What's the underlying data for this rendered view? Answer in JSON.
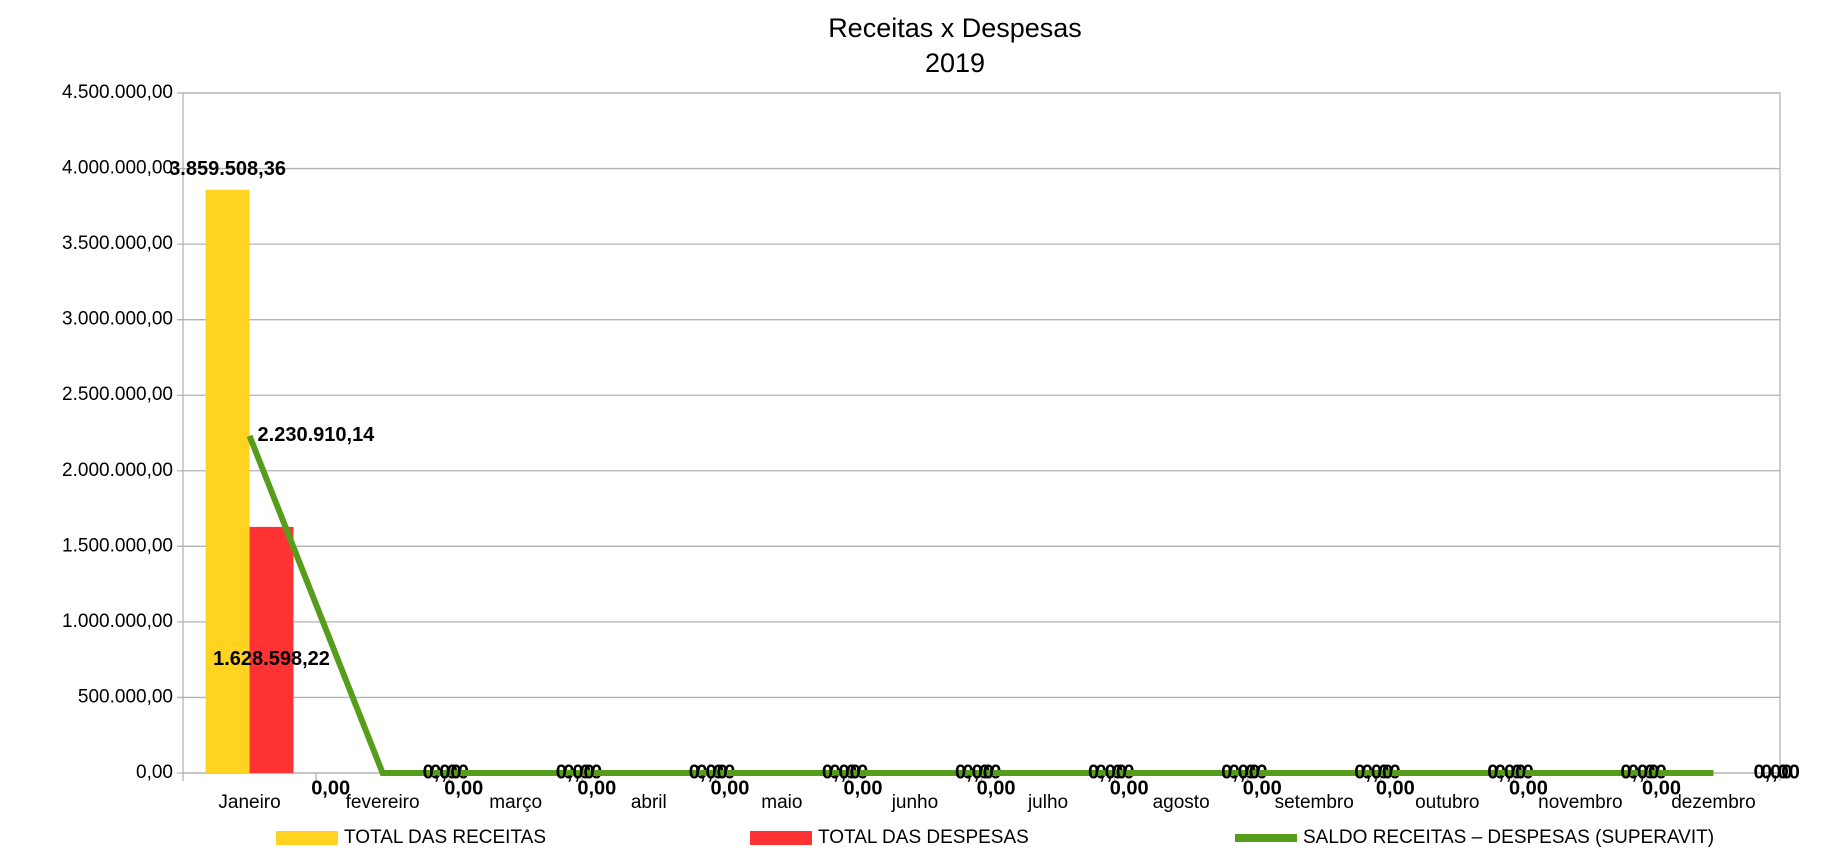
{
  "chart_data": {
    "type": "bar",
    "title": "Receitas x Despesas",
    "subtitle": "2019",
    "categories": [
      "Janeiro",
      "fevereiro",
      "março",
      "abril",
      "maio",
      "junho",
      "julho",
      "agosto",
      "setembro",
      "outubro",
      "novembro",
      "dezembro"
    ],
    "series": [
      {
        "name": "TOTAL DAS RECEITAS",
        "type": "bar",
        "color": "#ffd320",
        "values": [
          3859508.36,
          0,
          0,
          0,
          0,
          0,
          0,
          0,
          0,
          0,
          0,
          0
        ],
        "value_labels": [
          "3.859.508,36",
          "0,00",
          "0,00",
          "0,00",
          "0,00",
          "0,00",
          "0,00",
          "0,00",
          "0,00",
          "0,00",
          "0,00",
          "0,00"
        ]
      },
      {
        "name": "TOTAL DAS DESPESAS",
        "type": "bar",
        "color": "#ff3333",
        "values": [
          1628598.22,
          0,
          0,
          0,
          0,
          0,
          0,
          0,
          0,
          0,
          0,
          0
        ],
        "value_labels": [
          "1.628.598,22",
          "0,00",
          "0,00",
          "0,00",
          "0,00",
          "0,00",
          "0,00",
          "0,00",
          "0,00",
          "0,00",
          "0,00",
          "0,00"
        ]
      },
      {
        "name": "SALDO RECEITAS – DESPESAS (SUPERAVIT)",
        "type": "line",
        "color": "#579d1c",
        "values": [
          2230910.14,
          0,
          0,
          0,
          0,
          0,
          0,
          0,
          0,
          0,
          0,
          0
        ],
        "value_labels": [
          "2.230.910,14",
          "0,00",
          "0,00",
          "0,00",
          "0,00",
          "0,00",
          "0,00",
          "0,00",
          "0,00",
          "0,00",
          "0,00",
          "0,00"
        ]
      }
    ],
    "ylim": [
      0,
      4500000
    ],
    "yticks": [
      {
        "value": 0,
        "label": "0,00"
      },
      {
        "value": 500000,
        "label": "500.000,00"
      },
      {
        "value": 1000000,
        "label": "1.000.000,00"
      },
      {
        "value": 1500000,
        "label": "1.500.000,00"
      },
      {
        "value": 2000000,
        "label": "2.000.000,00"
      },
      {
        "value": 2500000,
        "label": "2.500.000,00"
      },
      {
        "value": 3000000,
        "label": "3.000.000,00"
      },
      {
        "value": 3500000,
        "label": "3.500.000,00"
      },
      {
        "value": 4000000,
        "label": "4.000.000,00"
      },
      {
        "value": 4500000,
        "label": "4.500.000,00"
      }
    ],
    "grid": true,
    "legend": "bottom"
  }
}
